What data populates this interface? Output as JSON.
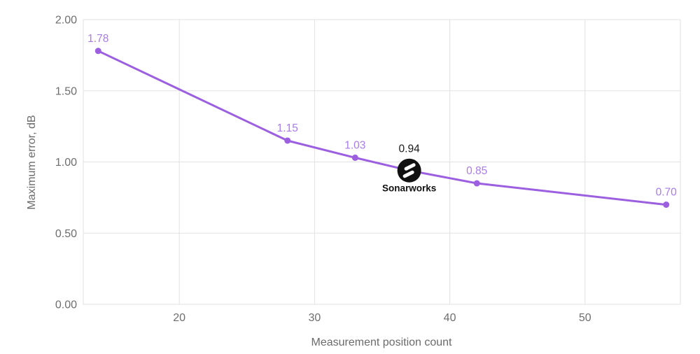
{
  "chart_data": {
    "type": "line",
    "title": "",
    "xlabel": "Measurement position count",
    "ylabel": "Maximum error, dB",
    "series": [
      {
        "name": "Maximum error",
        "x": [
          14,
          28,
          33,
          37,
          42,
          56
        ],
        "values": [
          1.78,
          1.15,
          1.03,
          0.94,
          0.85,
          0.7
        ],
        "point_labels": [
          "1.78",
          "1.15",
          "1.03",
          "0.94",
          "0.85",
          "0.70"
        ]
      }
    ],
    "highlight": {
      "index": 3,
      "value_label": "0.94",
      "brand": "Sonarworks",
      "icon": "sonarworks-logo-icon"
    },
    "x_ticks": [
      20,
      30,
      40,
      50
    ],
    "x_tick_labels": [
      "20",
      "30",
      "40",
      "50"
    ],
    "y_ticks": [
      0,
      0.5,
      1,
      1.5,
      2
    ],
    "y_tick_labels": [
      "0.00",
      "0.50",
      "1.00",
      "1.50",
      "2.00"
    ],
    "xlim": [
      12.9,
      57.05
    ],
    "ylim": [
      0,
      2
    ],
    "grid": true,
    "legend_position": "none",
    "colors": {
      "line": "#9b5fe0",
      "marker": "#9b5fe0",
      "point_label": "#a87ce8",
      "grid": "#e2e2e2",
      "axis_text": "#6b6b6b",
      "tick_text": "#6e6e6e",
      "highlight_bg": "#111111",
      "highlight_fg": "#ffffff",
      "highlight_text": "#1a1a1a",
      "background": "#ffffff"
    }
  }
}
